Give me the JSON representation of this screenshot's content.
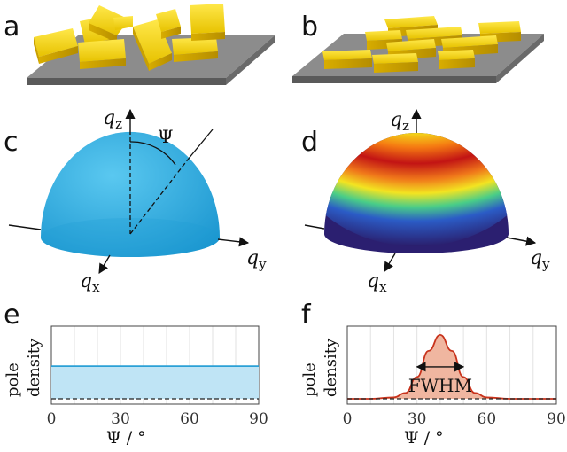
{
  "panels": {
    "a": "a",
    "b": "b",
    "c": "c",
    "d": "d",
    "e": "e",
    "f": "f"
  },
  "labels": {
    "qz_main": "q",
    "qz_sub": "z",
    "qy_main": "q",
    "qy_sub": "y",
    "qx_main": "q",
    "qx_sub": "x",
    "psi": "Ψ",
    "ylabel_line1": "pole",
    "ylabel_line2": "density",
    "xlabel": "Ψ / °",
    "fwhm": "FWHM"
  },
  "colors": {
    "substrate": "#8a8a8a",
    "crystal": "#f2d200",
    "sphere_uniform": "#1fa5dd",
    "uniform_line": "#2aa0d6",
    "uniform_fill": "#bfe4f5",
    "peak_line": "#c8331c",
    "peak_fill": "#f0b6a0"
  },
  "chart_data": [
    {
      "panel": "e",
      "type": "area",
      "xlabel": "Ψ / °",
      "ylabel": "pole density",
      "xlim": [
        0,
        90
      ],
      "ylim": [
        0,
        1
      ],
      "xticks": [
        0,
        30,
        60,
        90
      ],
      "grid": "vertical",
      "series": [
        {
          "x": [
            0,
            90
          ],
          "y": [
            0.45,
            0.45
          ]
        }
      ],
      "baseline": 0.0
    },
    {
      "panel": "f",
      "type": "area",
      "xlabel": "Ψ / °",
      "ylabel": "pole density",
      "xlim": [
        0,
        90
      ],
      "ylim": [
        0,
        1
      ],
      "xticks": [
        0,
        30,
        60,
        90
      ],
      "grid": "vertical",
      "series": [
        {
          "x": [
            0,
            10,
            20,
            25,
            30,
            35,
            40,
            45,
            50,
            55,
            60,
            70,
            80,
            90
          ],
          "y": [
            0.0,
            0.0,
            0.02,
            0.08,
            0.3,
            0.66,
            0.88,
            0.66,
            0.3,
            0.08,
            0.02,
            0.0,
            0.0,
            0.0
          ]
        }
      ],
      "annotation": "FWHM",
      "peak_center": 40,
      "fwhm_range": [
        30,
        50
      ]
    }
  ]
}
